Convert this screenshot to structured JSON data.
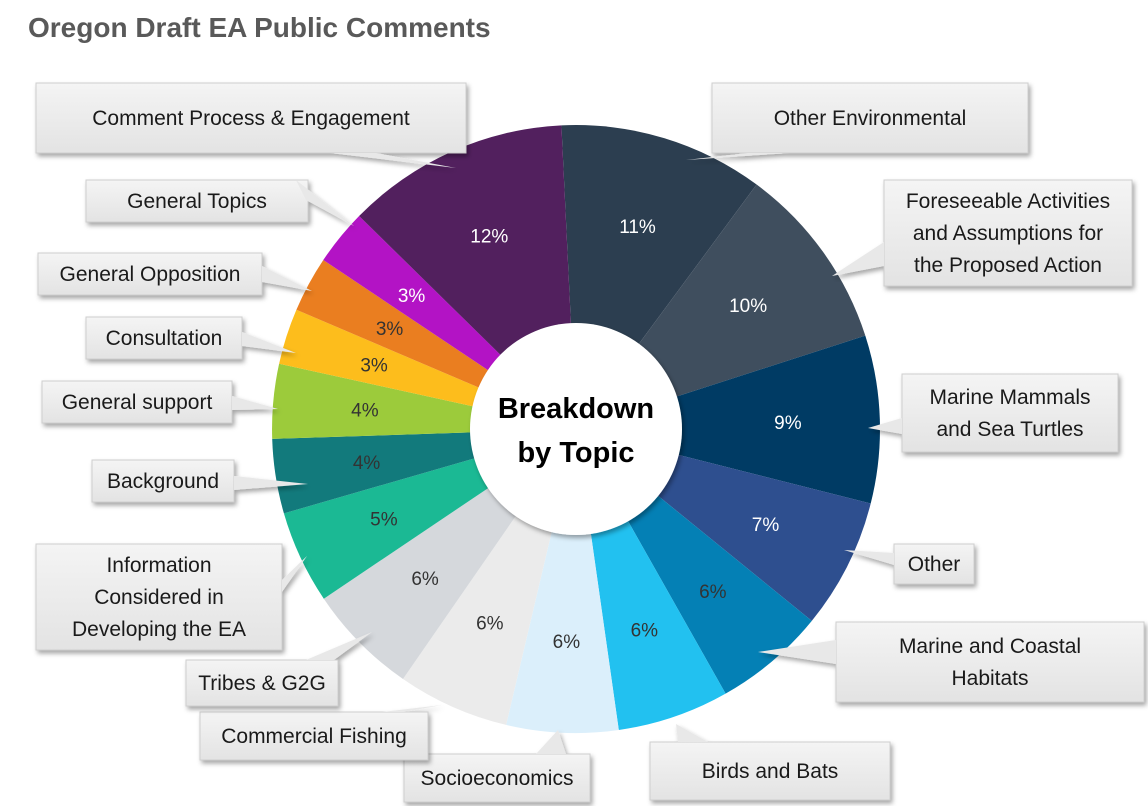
{
  "chart_data": {
    "type": "pie",
    "title": "Oregon Draft EA Public Comments",
    "center_label": [
      "Breakdown",
      "by Topic"
    ],
    "slices": [
      {
        "label": "Other Environmental",
        "value": 11,
        "display": "11%",
        "color": "#2c3e50"
      },
      {
        "label": "Foreseeable Activities and Assumptions for the Proposed Action",
        "value": 10,
        "display": "10%",
        "color": "#3f4e5e"
      },
      {
        "label": "Marine Mammals and Sea Turtles",
        "value": 9,
        "display": "9%",
        "color": "#003b64"
      },
      {
        "label": "Other",
        "value": 7,
        "display": "7%",
        "color": "#2e4f8f"
      },
      {
        "label": "Marine and Coastal Habitats",
        "value": 6,
        "display": "6%",
        "color": "#0480b5"
      },
      {
        "label": "Birds and Bats",
        "value": 6,
        "display": "6%",
        "color": "#22c1f0"
      },
      {
        "label": "Socioeconomics",
        "value": 6,
        "display": "6%",
        "color": "#dbeffb"
      },
      {
        "label": "Commercial Fishing",
        "value": 6,
        "display": "6%",
        "color": "#ebebeb"
      },
      {
        "label": "Tribes & G2G",
        "value": 6,
        "display": "6%",
        "color": "#d5d8dc"
      },
      {
        "label": "Information Considered in Developing the EA",
        "value": 5,
        "display": "5%",
        "color": "#1bb994"
      },
      {
        "label": "Background",
        "value": 4,
        "display": "4%",
        "color": "#127a7c"
      },
      {
        "label": "General support",
        "value": 4,
        "display": "4%",
        "color": "#9ccb3b"
      },
      {
        "label": "Consultation",
        "value": 3,
        "display": "3%",
        "color": "#fdbd1c"
      },
      {
        "label": "General Opposition",
        "value": 3,
        "display": "3%",
        "color": "#ea7e20"
      },
      {
        "label": "General Topics",
        "value": 3,
        "display": "3%",
        "color": "#b313c5"
      },
      {
        "label": "Comment Process & Engagement",
        "value": 12,
        "display": "12%",
        "color": "#52205e"
      }
    ]
  }
}
